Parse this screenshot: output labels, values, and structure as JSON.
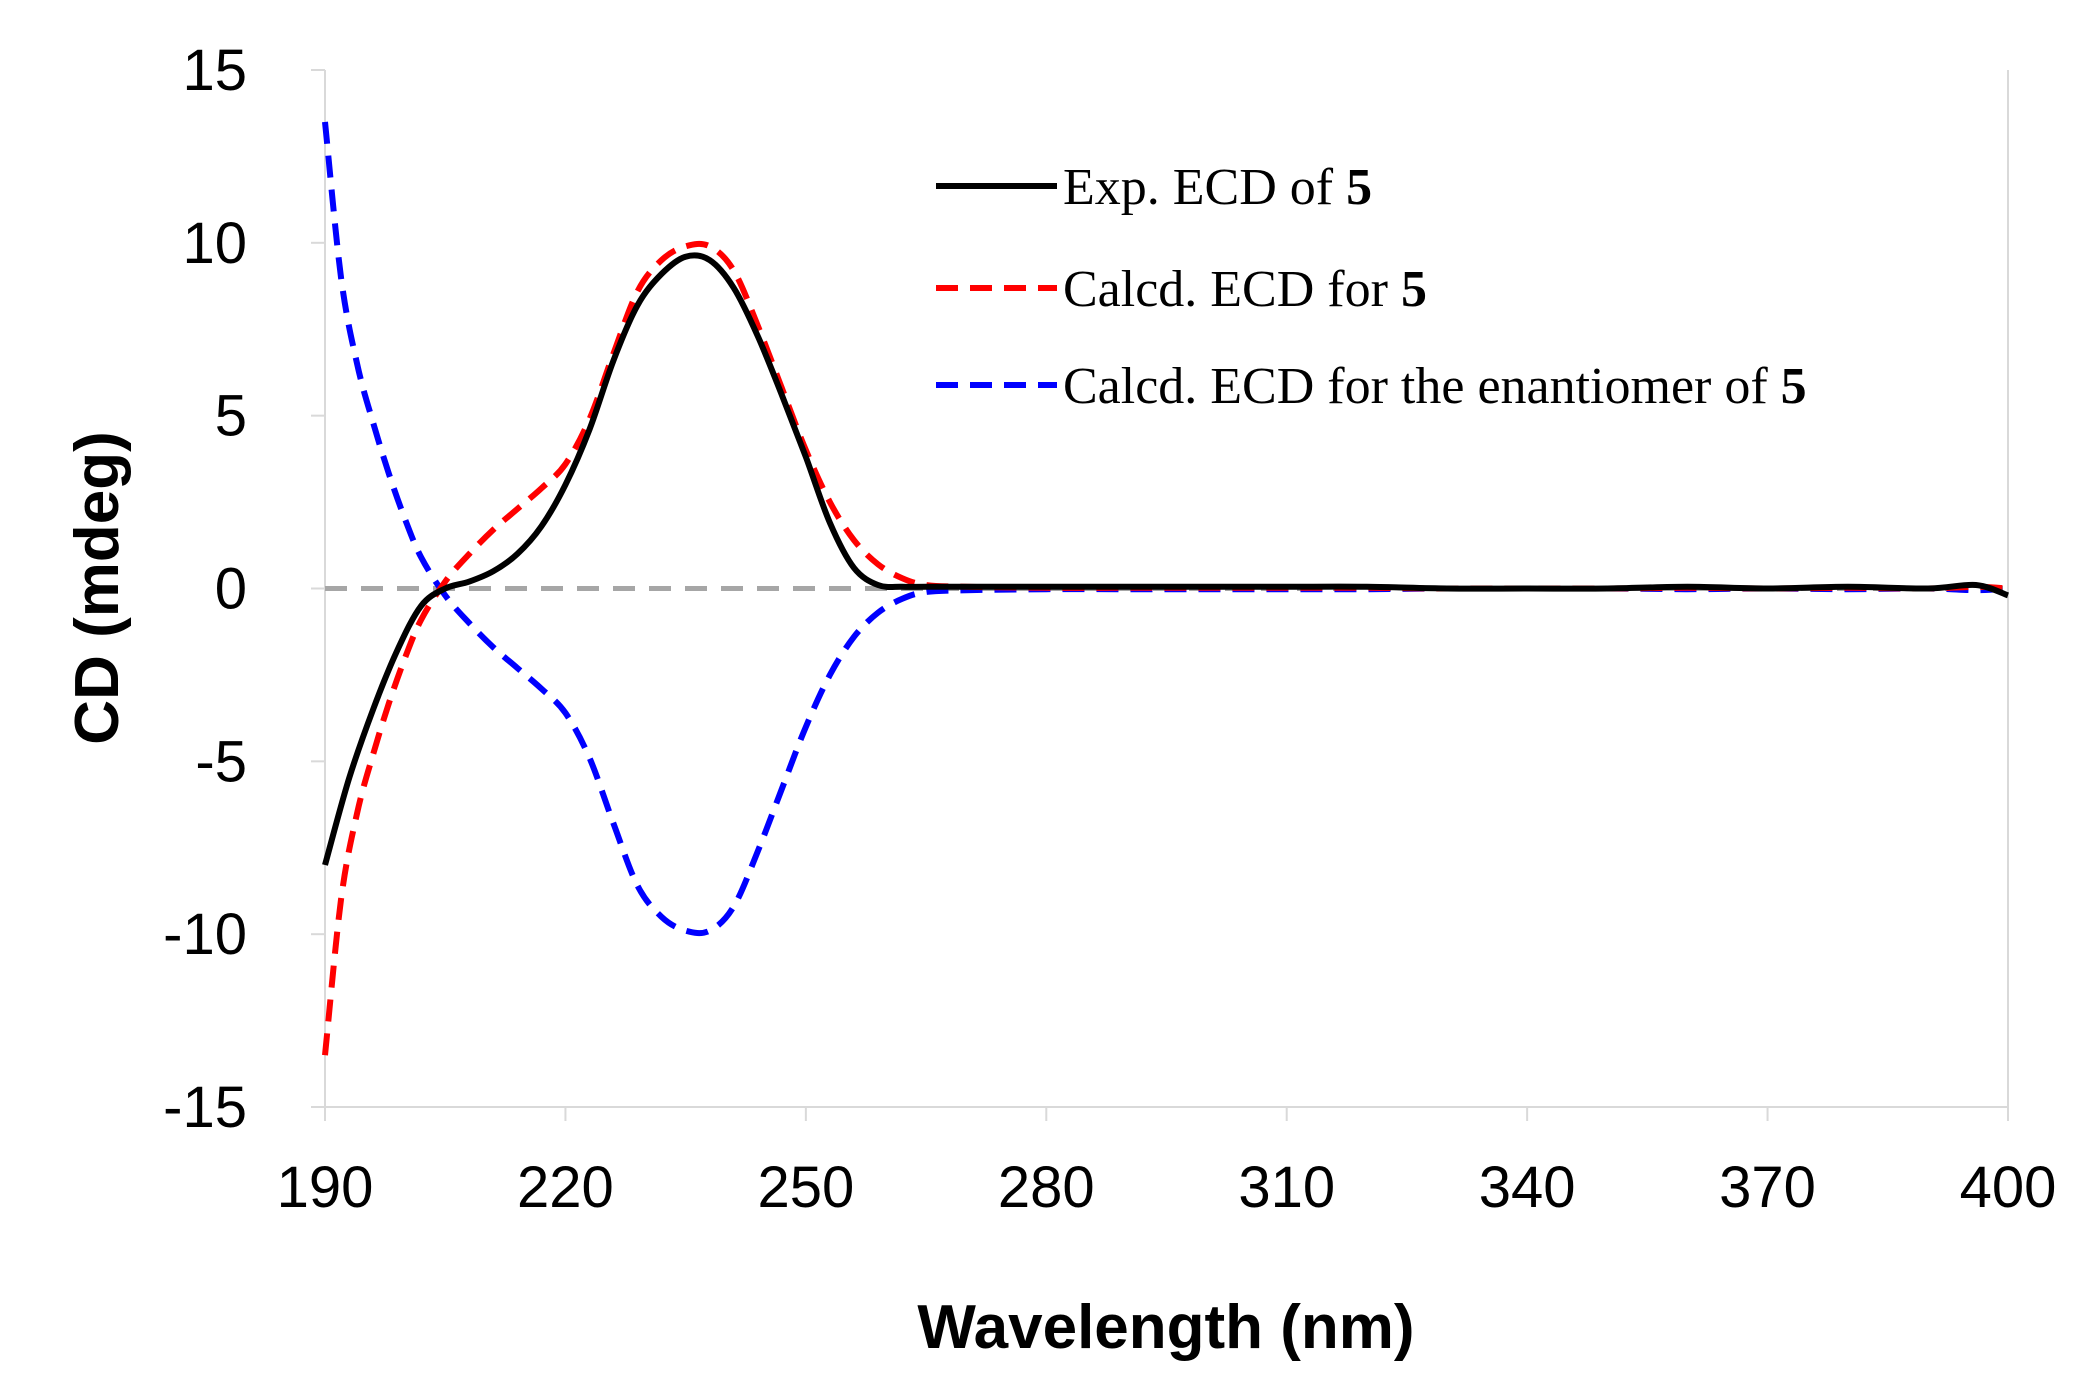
{
  "chart_data": {
    "type": "line",
    "xlabel": "Wavelength (nm)",
    "ylabel": "CD (mdeg)",
    "xlim": [
      190,
      400
    ],
    "ylim": [
      -15,
      15
    ],
    "xticks": [
      "190",
      "220",
      "250",
      "280",
      "310",
      "340",
      "370",
      "400"
    ],
    "yticks": [
      "15",
      "10",
      "5",
      "0",
      "-5",
      "-10",
      "-15"
    ],
    "zero_line": {
      "y": 0,
      "style": "dashed",
      "color": "#a6a6a6"
    },
    "legend_position": "top-right",
    "series": [
      {
        "name": "Exp. ECD of 5",
        "name_parts": [
          "Exp. ECD of ",
          "5"
        ],
        "color": "#000000",
        "style": "solid",
        "x": [
          190,
          193,
          196,
          199,
          202,
          205,
          208,
          211,
          214,
          217,
          220,
          223,
          226,
          229,
          232,
          235,
          238,
          241,
          244,
          247,
          250,
          253,
          256,
          259,
          262,
          265,
          270,
          280,
          290,
          300,
          310,
          320,
          330,
          340,
          350,
          360,
          370,
          380,
          390,
          396,
          400
        ],
        "y": [
          -8.0,
          -5.5,
          -3.5,
          -1.8,
          -0.5,
          0.0,
          0.2,
          0.5,
          1.0,
          1.8,
          3.0,
          4.6,
          6.6,
          8.2,
          9.1,
          9.6,
          9.5,
          8.7,
          7.3,
          5.6,
          3.8,
          1.9,
          0.6,
          0.1,
          0.05,
          0.05,
          0.05,
          0.05,
          0.05,
          0.05,
          0.05,
          0.05,
          0.0,
          0.0,
          0.0,
          0.05,
          0.0,
          0.05,
          0.0,
          0.1,
          -0.2
        ]
      },
      {
        "name": "Calcd. ECD for 5",
        "name_parts": [
          "Calcd. ECD for ",
          "5"
        ],
        "color": "#ff0000",
        "style": "dashed",
        "x": [
          190,
          192,
          194,
          196,
          198,
          200,
          202,
          205,
          208,
          211,
          214,
          217,
          220,
          223,
          226,
          229,
          232,
          235,
          238,
          241,
          244,
          247,
          250,
          253,
          256,
          259,
          262,
          265,
          270,
          280,
          290,
          300,
          310,
          320,
          330,
          340,
          350,
          360,
          370,
          380,
          390,
          396,
          400
        ],
        "y": [
          -13.5,
          -9.0,
          -6.5,
          -4.8,
          -3.3,
          -2.0,
          -0.9,
          0.2,
          1.0,
          1.7,
          2.3,
          2.9,
          3.6,
          4.9,
          6.8,
          8.6,
          9.5,
          9.9,
          9.9,
          9.2,
          7.6,
          5.8,
          4.0,
          2.5,
          1.4,
          0.7,
          0.3,
          0.1,
          0.05,
          0.02,
          0.02,
          0.02,
          0.02,
          0.02,
          0.0,
          0.0,
          0.0,
          0.02,
          0.0,
          0.02,
          0.0,
          0.05,
          0.0
        ]
      },
      {
        "name": "Calcd. ECD for the enantiomer of 5",
        "name_parts": [
          "Calcd. ECD for the enantiomer of ",
          "5"
        ],
        "color": "#0000ff",
        "style": "dashed",
        "x": [
          190,
          192,
          194,
          196,
          198,
          200,
          202,
          205,
          208,
          211,
          214,
          217,
          220,
          223,
          226,
          229,
          232,
          235,
          238,
          241,
          244,
          247,
          250,
          253,
          256,
          259,
          262,
          265,
          270,
          280,
          290,
          300,
          310,
          320,
          330,
          340,
          350,
          360,
          370,
          380,
          390,
          396,
          400
        ],
        "y": [
          13.5,
          9.0,
          6.5,
          4.8,
          3.3,
          2.0,
          0.9,
          -0.2,
          -1.0,
          -1.7,
          -2.3,
          -2.9,
          -3.6,
          -4.9,
          -6.8,
          -8.6,
          -9.5,
          -9.9,
          -9.9,
          -9.2,
          -7.6,
          -5.8,
          -4.0,
          -2.5,
          -1.4,
          -0.7,
          -0.3,
          -0.1,
          -0.05,
          -0.02,
          -0.02,
          -0.02,
          -0.02,
          -0.02,
          0.0,
          0.0,
          0.0,
          -0.02,
          0.0,
          -0.02,
          0.0,
          -0.05,
          0.0
        ]
      }
    ]
  }
}
